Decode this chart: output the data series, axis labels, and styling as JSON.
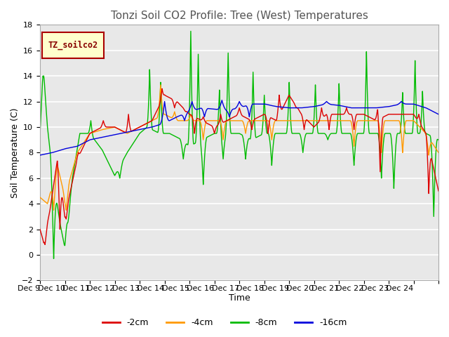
{
  "title": "Tonzi Soil CO2 Profile: Tree (West) Temperatures",
  "xlabel": "Time",
  "ylabel": "Soil Temperature (C)",
  "ylim": [
    -2,
    18
  ],
  "yticks": [
    -2,
    0,
    2,
    4,
    6,
    8,
    10,
    12,
    14,
    16,
    18
  ],
  "legend_label": "TZ_soilco2",
  "series_labels": [
    "-2cm",
    "-4cm",
    "-8cm",
    "-16cm"
  ],
  "series_colors": [
    "#dd0000",
    "#ff9900",
    "#00bb00",
    "#0000dd"
  ],
  "background_color": "#ffffff",
  "plot_bg_color": "#e8e8e8",
  "title_fontsize": 11,
  "axis_fontsize": 9,
  "tick_fontsize": 8,
  "x_tick_labels": [
    "Dec 9",
    "Dec 10",
    "Dec 11",
    "Dec 12",
    "Dec 13",
    "Dec 14",
    "Dec 15",
    "Dec 16",
    "Dec 17",
    "Dec 18",
    "Dec 19",
    "Dec 20",
    "Dec 21",
    "Dec 22",
    "Dec 23",
    "Dec 24"
  ]
}
